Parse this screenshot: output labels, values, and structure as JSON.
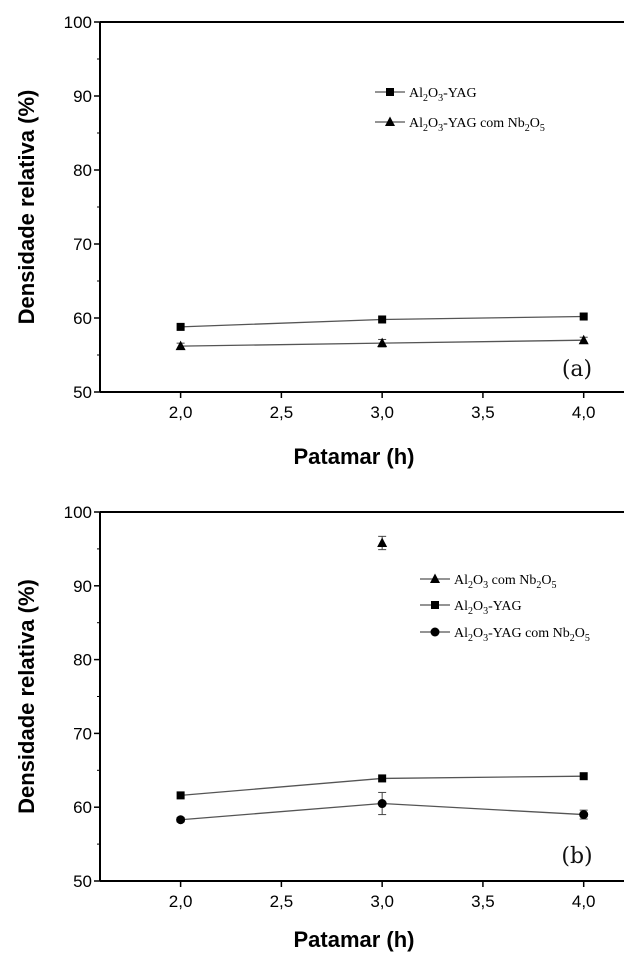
{
  "chart_data": [
    {
      "type": "line",
      "panel_label": "(a)",
      "xlabel": "Patamar (h)",
      "ylabel": "Densidade relativa (%)",
      "xlim": [
        1.6,
        4.2
      ],
      "ylim": [
        50,
        100
      ],
      "x_ticks": [
        "2,0",
        "2,5",
        "3,0",
        "3,5",
        "4,0"
      ],
      "x_tick_values": [
        2.0,
        2.5,
        3.0,
        3.5,
        4.0
      ],
      "y_ticks": [
        "50",
        "60",
        "70",
        "80",
        "90",
        "100"
      ],
      "y_tick_values": [
        50,
        60,
        70,
        80,
        90,
        100
      ],
      "legend_position": "top-right",
      "series": [
        {
          "name_parts": [
            [
              "Al",
              ""
            ],
            [
              "2",
              "sub"
            ],
            [
              "O",
              ""
            ],
            [
              "3",
              "sub"
            ],
            [
              "-YAG",
              ""
            ]
          ],
          "marker": "square",
          "connect": true,
          "x": [
            2.0,
            3.0,
            4.0
          ],
          "y": [
            58.8,
            59.8,
            60.2
          ],
          "err": [
            0,
            0,
            0
          ]
        },
        {
          "name_parts": [
            [
              "Al",
              ""
            ],
            [
              "2",
              "sub"
            ],
            [
              "O",
              ""
            ],
            [
              "3",
              "sub"
            ],
            [
              "-YAG com Nb",
              ""
            ],
            [
              "2",
              "sub"
            ],
            [
              "O",
              ""
            ],
            [
              "5",
              "sub"
            ]
          ],
          "marker": "triangle",
          "connect": true,
          "x": [
            2.0,
            3.0,
            4.0
          ],
          "y": [
            56.2,
            56.6,
            57.0
          ],
          "err": [
            0.4,
            0.5,
            0.4
          ]
        }
      ]
    },
    {
      "type": "line",
      "panel_label": "(b)",
      "xlabel": "Patamar (h)",
      "ylabel": "Densidade relativa (%)",
      "xlim": [
        1.6,
        4.2
      ],
      "ylim": [
        50,
        100
      ],
      "x_ticks": [
        "2,0",
        "2,5",
        "3,0",
        "3,5",
        "4,0"
      ],
      "x_tick_values": [
        2.0,
        2.5,
        3.0,
        3.5,
        4.0
      ],
      "y_ticks": [
        "50",
        "60",
        "70",
        "80",
        "90",
        "100"
      ],
      "y_tick_values": [
        50,
        60,
        70,
        80,
        90,
        100
      ],
      "legend_position": "top-right",
      "series": [
        {
          "name_parts": [
            [
              "Al",
              ""
            ],
            [
              "2",
              "sub"
            ],
            [
              "O",
              ""
            ],
            [
              "3",
              "sub"
            ],
            [
              " com Nb",
              ""
            ],
            [
              "2",
              "sub"
            ],
            [
              "O",
              ""
            ],
            [
              "5",
              "sub"
            ]
          ],
          "marker": "triangle",
          "connect": false,
          "x": [
            3.0
          ],
          "y": [
            95.8
          ],
          "err": [
            0.9
          ]
        },
        {
          "name_parts": [
            [
              "Al",
              ""
            ],
            [
              "2",
              "sub"
            ],
            [
              "O",
              ""
            ],
            [
              "3",
              "sub"
            ],
            [
              "-YAG",
              ""
            ]
          ],
          "marker": "square",
          "connect": true,
          "x": [
            2.0,
            3.0,
            4.0
          ],
          "y": [
            61.6,
            63.9,
            64.2
          ],
          "err": [
            0,
            0,
            0
          ]
        },
        {
          "name_parts": [
            [
              "Al",
              ""
            ],
            [
              "2",
              "sub"
            ],
            [
              "O",
              ""
            ],
            [
              "3",
              "sub"
            ],
            [
              "-YAG com Nb",
              ""
            ],
            [
              "2",
              "sub"
            ],
            [
              "O",
              ""
            ],
            [
              "5",
              "sub"
            ]
          ],
          "marker": "circle",
          "connect": true,
          "x": [
            2.0,
            3.0,
            4.0
          ],
          "y": [
            58.3,
            60.5,
            59.0
          ],
          "err": [
            0.3,
            1.5,
            0.6
          ]
        }
      ]
    }
  ]
}
